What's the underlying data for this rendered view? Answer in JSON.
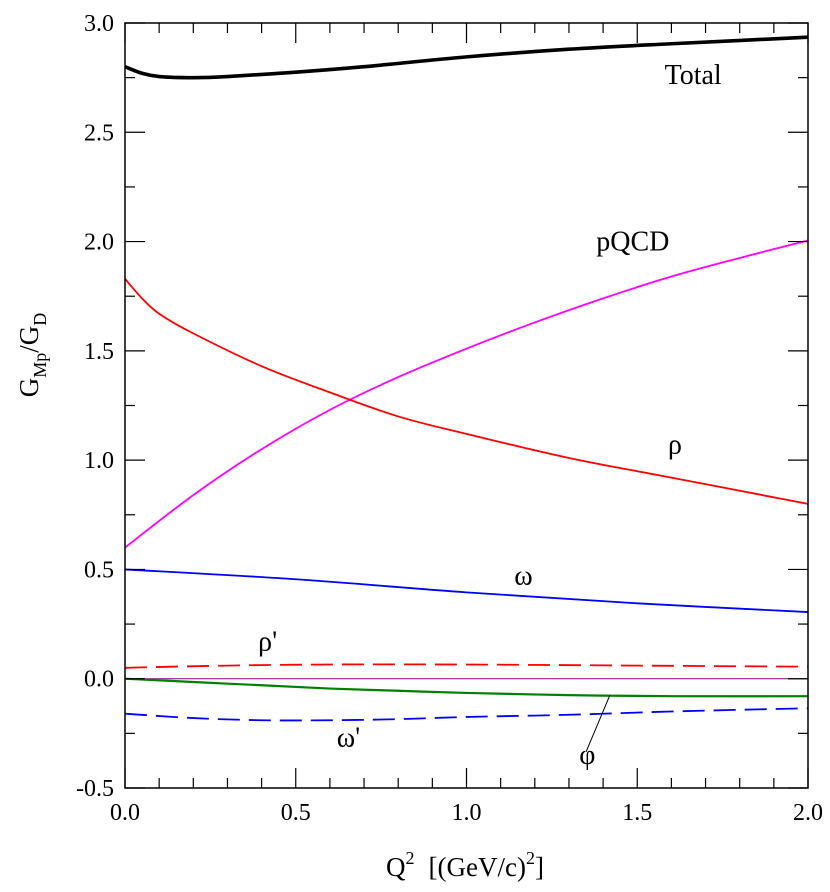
{
  "chart_data": {
    "type": "line",
    "xlabel": {
      "main": "Q",
      "sup1": "2",
      "unit": "[(GeV/c)",
      "sup2": "2",
      "close": "]"
    },
    "ylabel": {
      "main": "G",
      "sub1": "Mp",
      "slash": "/G",
      "sub2": "D"
    },
    "xlim": [
      0.0,
      2.0
    ],
    "ylim": [
      -0.5,
      3.0
    ],
    "xticks": [
      0.0,
      0.5,
      1.0,
      1.5,
      2.0
    ],
    "xtick_labels": [
      "0.0",
      "0.5",
      "1.0",
      "1.5",
      "2.0"
    ],
    "yticks": [
      -0.5,
      0.0,
      0.5,
      1.0,
      1.5,
      2.0,
      2.5,
      3.0
    ],
    "ytick_labels": [
      "-0.5",
      "0.0",
      "0.5",
      "1.0",
      "1.5",
      "2.0",
      "2.5",
      "3.0"
    ],
    "zero_line": true,
    "series": [
      {
        "name": "Total",
        "color": "#000000",
        "dash": "solid",
        "width": 3.6,
        "x": [
          0,
          0.05,
          0.1,
          0.2,
          0.3,
          0.5,
          0.7,
          1.0,
          1.3,
          1.6,
          2.0
        ],
        "y": [
          2.8,
          2.77,
          2.755,
          2.75,
          2.755,
          2.775,
          2.8,
          2.845,
          2.88,
          2.905,
          2.935
        ]
      },
      {
        "name": "pQCD",
        "color": "#ff00ff",
        "dash": "solid",
        "width": 1.8,
        "x": [
          0,
          0.2,
          0.4,
          0.6,
          0.8,
          1.0,
          1.2,
          1.4,
          1.6,
          1.8,
          2.0
        ],
        "y": [
          0.6,
          0.84,
          1.05,
          1.23,
          1.38,
          1.51,
          1.63,
          1.74,
          1.84,
          1.925,
          2.005
        ]
      },
      {
        "name": "ρ",
        "color": "#ff0000",
        "dash": "solid",
        "width": 1.8,
        "x": [
          0,
          0.05,
          0.1,
          0.2,
          0.4,
          0.6,
          0.8,
          1.0,
          1.3,
          1.6,
          2.0
        ],
        "y": [
          1.83,
          1.74,
          1.67,
          1.58,
          1.43,
          1.31,
          1.2,
          1.12,
          1.01,
          0.92,
          0.8
        ]
      },
      {
        "name": "ω",
        "color": "#0000ff",
        "dash": "solid",
        "width": 1.8,
        "x": [
          0,
          0.5,
          1.0,
          1.5,
          2.0
        ],
        "y": [
          0.5,
          0.455,
          0.395,
          0.345,
          0.305
        ]
      },
      {
        "name": "ρ'",
        "color": "#ff0000",
        "dash": "dashed",
        "width": 1.8,
        "x": [
          0,
          0.3,
          0.6,
          1.0,
          1.5,
          2.0
        ],
        "y": [
          0.05,
          0.06,
          0.065,
          0.065,
          0.06,
          0.055
        ]
      },
      {
        "name": "φ",
        "color": "#008000",
        "dash": "solid",
        "width": 2.2,
        "x": [
          0,
          0.2,
          0.4,
          0.6,
          0.8,
          1.0,
          1.3,
          1.6,
          2.0
        ],
        "y": [
          0.0,
          -0.015,
          -0.03,
          -0.045,
          -0.055,
          -0.065,
          -0.075,
          -0.08,
          -0.08
        ]
      },
      {
        "name": "ω'",
        "color": "#0000ff",
        "dash": "dashed",
        "width": 1.8,
        "x": [
          0,
          0.2,
          0.4,
          0.6,
          0.8,
          1.0,
          1.3,
          1.6,
          2.0
        ],
        "y": [
          -0.16,
          -0.18,
          -0.19,
          -0.19,
          -0.185,
          -0.175,
          -0.165,
          -0.15,
          -0.135
        ]
      }
    ],
    "annotations": [
      {
        "text": "Total",
        "x": 1.58,
        "y": 2.72
      },
      {
        "text": "pQCD",
        "x": 1.38,
        "y": 1.96
      },
      {
        "text": "ρ",
        "x": 1.59,
        "y": 1.03
      },
      {
        "text": "ω",
        "x": 1.14,
        "y": 0.43
      },
      {
        "text": "ρ'",
        "x": 0.39,
        "y": 0.13
      },
      {
        "text": "ω'",
        "x": 0.62,
        "y": -0.31
      },
      {
        "text": "φ",
        "x": 1.33,
        "y": -0.39
      }
    ],
    "leader_line": {
      "from": [
        1.35,
        -0.335
      ],
      "to": [
        1.42,
        -0.075
      ]
    }
  }
}
